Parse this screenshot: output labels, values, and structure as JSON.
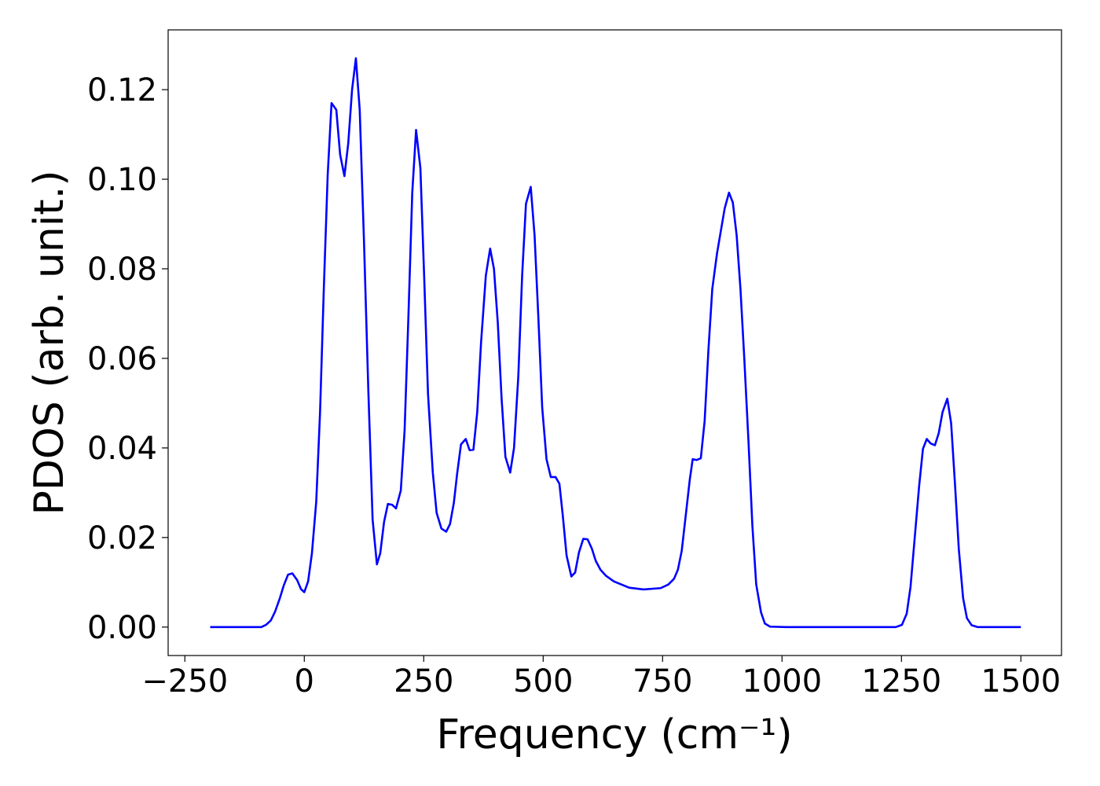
{
  "chart_data": {
    "type": "line",
    "xlabel": "Frequency (cm⁻¹)",
    "ylabel": "PDOS (arb. unit.)",
    "color": "#0000ff",
    "xlim": [
      -285,
      1585
    ],
    "ylim": [
      -0.00635,
      0.13335
    ],
    "xticks": [
      {
        "value": -250,
        "label": "−250"
      },
      0,
      250,
      500,
      750,
      1000,
      1250,
      1500
    ],
    "yticks": [
      {
        "value": 0,
        "label": "0.00"
      },
      {
        "value": 0.02,
        "label": "0.02"
      },
      {
        "value": 0.04,
        "label": "0.04"
      },
      {
        "value": 0.06,
        "label": "0.06"
      },
      {
        "value": 0.08,
        "label": "0.08"
      },
      {
        "value": 0.1,
        "label": "0.10"
      },
      {
        "value": 0.12,
        "label": "0.12"
      }
    ],
    "x": [
      -197,
      -90,
      -80,
      -70,
      -61,
      -51,
      -43,
      -34,
      -25,
      -15,
      -7,
      0,
      8,
      16,
      25,
      33,
      41,
      49,
      57,
      67,
      75,
      84,
      92,
      100,
      108,
      116,
      125,
      134,
      143,
      152,
      159,
      167,
      175,
      184,
      192,
      202,
      210,
      218,
      226,
      234,
      243,
      251,
      259,
      269,
      277,
      287,
      297,
      305,
      313,
      320,
      328,
      338,
      346,
      354,
      362,
      370,
      380,
      389,
      397,
      405,
      413,
      421,
      431,
      439,
      448,
      456,
      464,
      474,
      482,
      490,
      498,
      507,
      516,
      526,
      534,
      541,
      549,
      559,
      567,
      575,
      584,
      593,
      602,
      610,
      620,
      631,
      648,
      680,
      710,
      746,
      762,
      774,
      782,
      790,
      798,
      807,
      813,
      821,
      830,
      838,
      846,
      854,
      864,
      872,
      880,
      889,
      897,
      905,
      913,
      921,
      930,
      938,
      946,
      956,
      964,
      975,
      1008,
      1238,
      1251,
      1261,
      1269,
      1277,
      1287,
      1295,
      1303,
      1311,
      1320,
      1328,
      1336,
      1346,
      1354,
      1362,
      1370,
      1379,
      1387,
      1397,
      1410,
      1500
    ],
    "values": [
      0,
      0,
      0.0005,
      0.0015,
      0.0035,
      0.0065,
      0.0093,
      0.0117,
      0.012,
      0.0105,
      0.0085,
      0.0078,
      0.0102,
      0.0165,
      0.028,
      0.048,
      0.076,
      0.101,
      0.117,
      0.1155,
      0.1055,
      0.1007,
      0.108,
      0.12,
      0.127,
      0.1155,
      0.086,
      0.053,
      0.024,
      0.014,
      0.0165,
      0.0235,
      0.0275,
      0.0273,
      0.0265,
      0.0305,
      0.044,
      0.0695,
      0.097,
      0.111,
      0.1025,
      0.078,
      0.052,
      0.0345,
      0.0255,
      0.022,
      0.0213,
      0.023,
      0.0277,
      0.0343,
      0.0408,
      0.042,
      0.0395,
      0.0396,
      0.048,
      0.0635,
      0.0785,
      0.0845,
      0.08,
      0.068,
      0.051,
      0.038,
      0.0345,
      0.04,
      0.056,
      0.0785,
      0.0945,
      0.0983,
      0.0875,
      0.069,
      0.049,
      0.0375,
      0.0335,
      0.0335,
      0.032,
      0.025,
      0.016,
      0.0113,
      0.0122,
      0.0167,
      0.0197,
      0.0196,
      0.0175,
      0.0148,
      0.0128,
      0.0115,
      0.0102,
      0.0088,
      0.0084,
      0.0087,
      0.0095,
      0.0108,
      0.0128,
      0.017,
      0.0245,
      0.033,
      0.0375,
      0.0373,
      0.0377,
      0.046,
      0.062,
      0.0755,
      0.0835,
      0.0885,
      0.0935,
      0.097,
      0.0948,
      0.0875,
      0.0755,
      0.06,
      0.041,
      0.0225,
      0.0095,
      0.0033,
      0.0008,
      0.0001,
      0,
      0,
      0.0005,
      0.003,
      0.009,
      0.019,
      0.0315,
      0.0398,
      0.042,
      0.041,
      0.0406,
      0.0433,
      0.048,
      0.051,
      0.0455,
      0.032,
      0.0175,
      0.0065,
      0.002,
      0.0004,
      0,
      0
    ]
  }
}
